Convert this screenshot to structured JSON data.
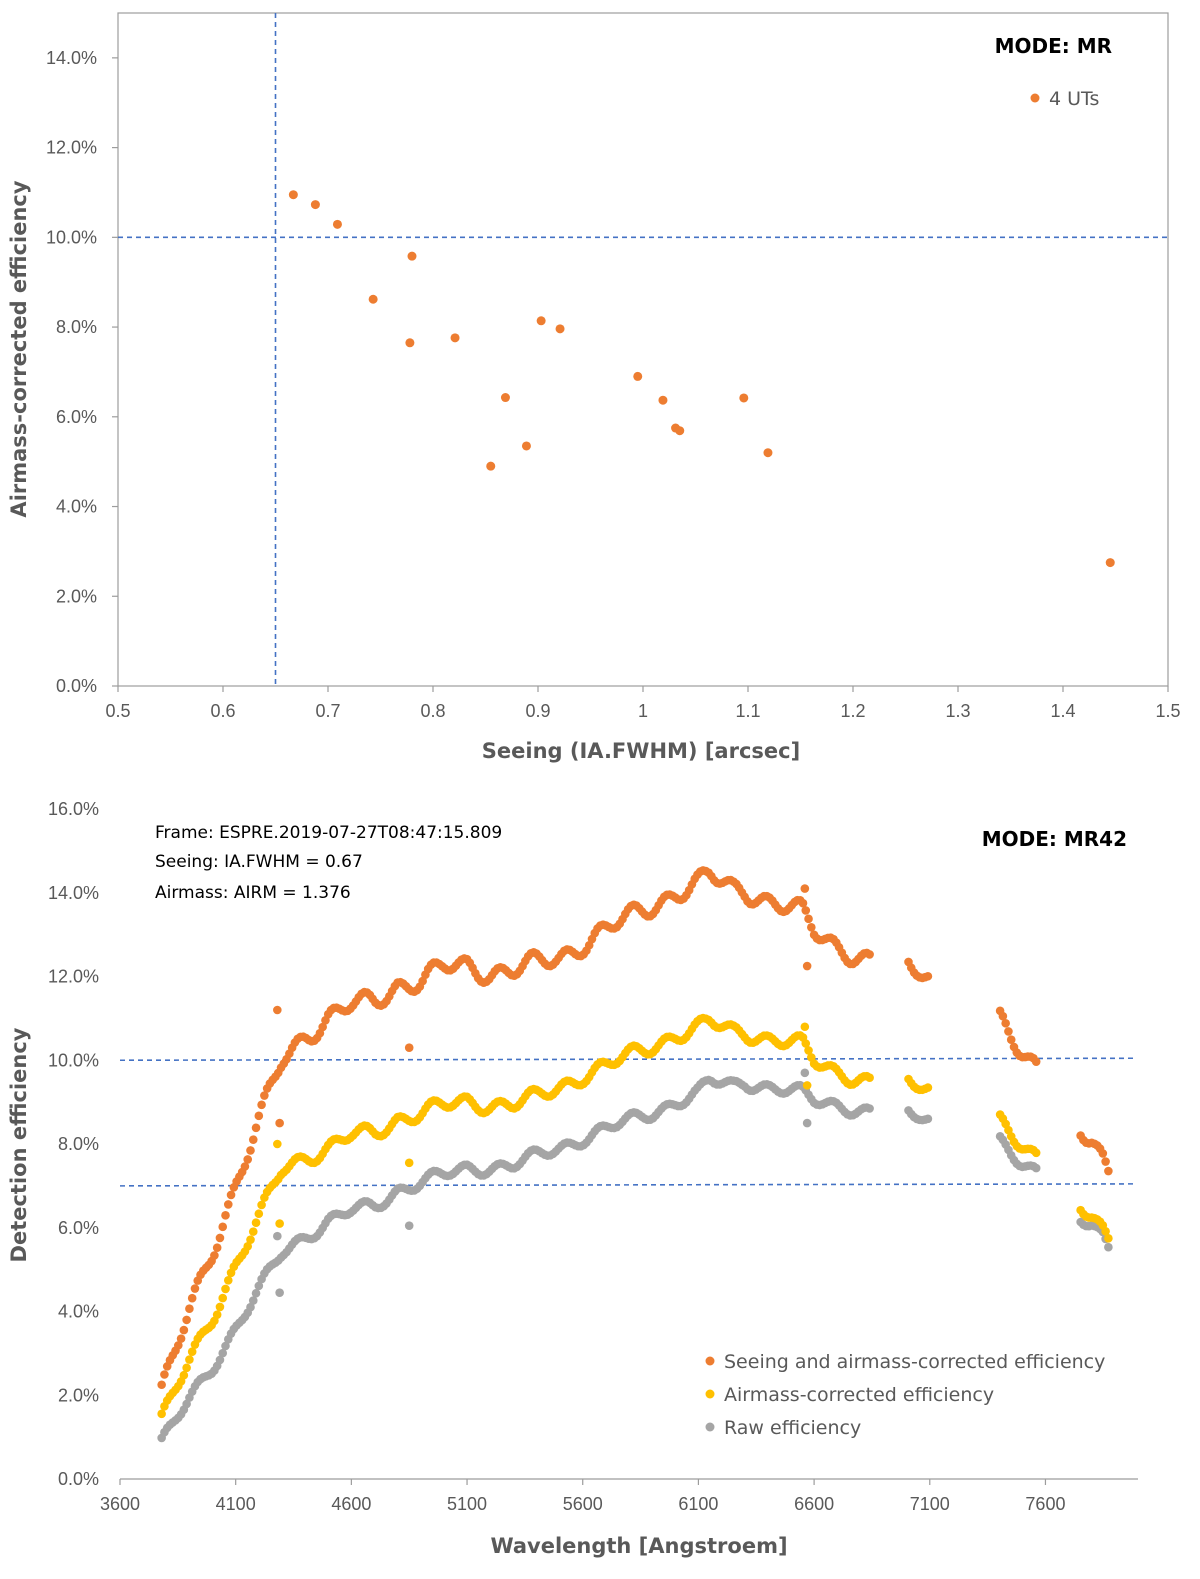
{
  "chart_data": [
    {
      "type": "scatter",
      "title": "",
      "xlabel": "Seeing (IA.FWHM) [arcsec]",
      "ylabel": "Airmass-corrected efficiency",
      "xlim": [
        0.5,
        1.5
      ],
      "ylim": [
        0.0,
        0.15
      ],
      "xticks": [
        0.5,
        0.6,
        0.7,
        0.8,
        0.9,
        1.0,
        1.1,
        1.2,
        1.3,
        1.4,
        1.5
      ],
      "xtick_labels": [
        "0.5",
        "0.6",
        "0.7",
        "0.8",
        "0.9",
        "1",
        "1.1",
        "1.2",
        "1.3",
        "1.4",
        "1.5"
      ],
      "yticks": [
        0.0,
        0.02,
        0.04,
        0.06,
        0.08,
        0.1,
        0.12,
        0.14
      ],
      "ytick_labels": [
        "0.0%",
        "2.0%",
        "4.0%",
        "6.0%",
        "8.0%",
        "10.0%",
        "12.0%",
        "14.0%"
      ],
      "mode_label": "MODE: MR",
      "reference_lines": {
        "vertical_x": 0.65,
        "horizontal_y": 0.1,
        "color": "#4472C4"
      },
      "series": [
        {
          "name": "4 UTs",
          "color": "#ED7D31",
          "x": [
            0.667,
            0.688,
            0.709,
            0.743,
            0.778,
            0.78,
            0.821,
            0.855,
            0.869,
            0.889,
            0.903,
            0.921,
            0.995,
            1.019,
            1.031,
            1.035,
            1.096,
            1.119,
            1.445
          ],
          "y": [
            0.1095,
            0.1073,
            0.1029,
            0.0862,
            0.0765,
            0.0958,
            0.0776,
            0.049,
            0.0643,
            0.0535,
            0.0814,
            0.0796,
            0.069,
            0.0637,
            0.0575,
            0.0569,
            0.0642,
            0.052,
            0.0275
          ]
        }
      ]
    },
    {
      "type": "scatter",
      "title": "",
      "xlabel": "Wavelength [Angstroem]",
      "ylabel": "Detection efficiency",
      "xlim": [
        3600,
        8000
      ],
      "ylim": [
        0.0,
        0.16
      ],
      "xticks": [
        3600,
        4100,
        4600,
        5100,
        5600,
        6100,
        6600,
        7100,
        7600
      ],
      "xtick_labels": [
        "3600",
        "4100",
        "4600",
        "5100",
        "5600",
        "6100",
        "6600",
        "7100",
        "7600"
      ],
      "yticks": [
        0.0,
        0.02,
        0.04,
        0.06,
        0.08,
        0.1,
        0.12,
        0.14,
        0.16
      ],
      "ytick_labels": [
        "0.0%",
        "2.0%",
        "4.0%",
        "6.0%",
        "8.0%",
        "10.0%",
        "12.0%",
        "14.0%",
        "16.0%"
      ],
      "mode_label": "MODE: MR42",
      "annotations": [
        "Frame: ESPRE.2019-07-27T08:47:15.809",
        "Seeing: IA.FWHM = 0.67",
        "Airmass: AIRM = 1.376"
      ],
      "reference_lines": {
        "horizontal_y": [
          0.1,
          0.07
        ],
        "color": "#4472C4"
      },
      "legend_position": "bottom-right",
      "x_sample": [
        3780,
        3900,
        4000,
        4100,
        4200,
        4300,
        4400,
        4500,
        4600,
        4700,
        4800,
        4900,
        5000,
        5100,
        5200,
        5300,
        5400,
        5500,
        5600,
        5700,
        5800,
        5900,
        6000,
        6100,
        6150,
        6250,
        6300,
        6400,
        6500,
        6550,
        6600,
        6700,
        6800,
        6850,
        7000,
        7050,
        7100,
        7400,
        7500,
        7560,
        7750,
        7800,
        7850,
        7880
      ],
      "series": [
        {
          "name": "Seeing and airmass-corrected efficiency",
          "color": "#ED7D31",
          "values": [
            0.0205,
            0.04,
            0.055,
            0.07,
            0.085,
            0.1,
            0.106,
            0.11,
            0.113,
            0.114,
            0.118,
            0.119,
            0.122,
            0.1225,
            0.121,
            0.1215,
            0.123,
            0.1245,
            0.128,
            0.131,
            0.134,
            0.137,
            0.14,
            0.142,
            0.144,
            0.141,
            0.141,
            0.138,
            0.136,
            0.135,
            0.131,
            0.1275,
            0.1245,
            0.123,
            0.1235,
            0.1225,
            0.12,
            0.1105,
            0.103,
            0.0985,
            0.083,
            0.081,
            0.077,
            0.0735
          ]
        },
        {
          "name": "Airmass-corrected efficiency",
          "color": "#FFC000",
          "values": [
            0.014,
            0.028,
            0.039,
            0.051,
            0.062,
            0.074,
            0.077,
            0.079,
            0.082,
            0.0825,
            0.086,
            0.0875,
            0.089,
            0.09,
            0.0895,
            0.0895,
            0.091,
            0.0935,
            0.0965,
            0.0985,
            0.101,
            0.1035,
            0.106,
            0.1075,
            0.109,
            0.107,
            0.107,
            0.105,
            0.104,
            0.1035,
            0.1,
            0.0975,
            0.0955,
            0.094,
            0.0955,
            0.095,
            0.0935,
            0.086,
            0.0805,
            0.077,
            0.065,
            0.063,
            0.06,
            0.0575
          ]
        },
        {
          "name": "Raw efficiency",
          "color": "#A5A5A5",
          "values": [
            0.0085,
            0.019,
            0.027,
            0.036,
            0.045,
            0.054,
            0.058,
            0.0615,
            0.064,
            0.065,
            0.069,
            0.071,
            0.0725,
            0.074,
            0.0745,
            0.075,
            0.077,
            0.079,
            0.0815,
            0.0835,
            0.0855,
            0.0875,
            0.09,
            0.092,
            0.095,
            0.094,
            0.095,
            0.0935,
            0.0925,
            0.092,
            0.0905,
            0.0895,
            0.088,
            0.087,
            0.088,
            0.0875,
            0.086,
            0.081,
            0.076,
            0.0735,
            0.062,
            0.061,
            0.0585,
            0.055
          ]
        }
      ],
      "outliers": {
        "x": [
          4280,
          4290,
          4850,
          4860,
          6560,
          6570
        ],
        "Seeing and airmass-corrected efficiency": [
          0.112,
          0.085,
          0.103,
          null,
          0.141,
          0.1225
        ],
        "Airmass-corrected efficiency": [
          0.08,
          0.061,
          0.0755,
          null,
          0.108,
          0.094
        ],
        "Raw efficiency": [
          0.058,
          0.0445,
          0.0605,
          null,
          0.097,
          0.085
        ]
      }
    }
  ]
}
